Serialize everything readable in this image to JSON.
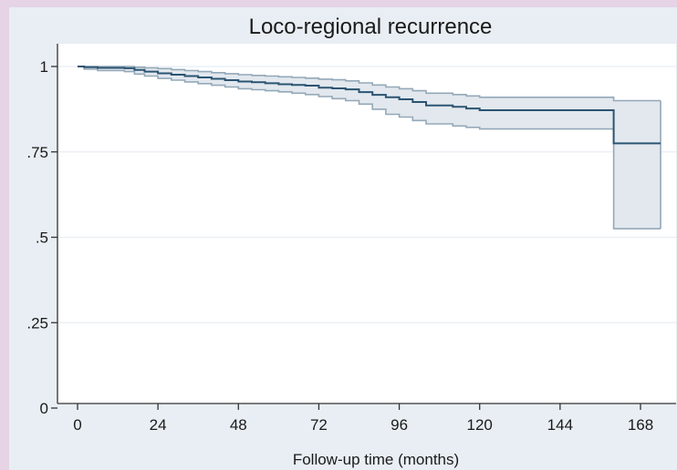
{
  "chart_data": {
    "type": "line",
    "title": "Loco-regional recurrence",
    "xlabel": "Follow-up time (months)",
    "ylabel": "",
    "xlim": [
      0,
      174
    ],
    "ylim": [
      0,
      1
    ],
    "x_ticks": [
      0,
      24,
      48,
      72,
      96,
      120,
      144,
      168
    ],
    "y_ticks": [
      0,
      0.25,
      0.5,
      0.75,
      1
    ],
    "y_tick_labels": [
      "0",
      ".25",
      ".5",
      ".75",
      "1"
    ],
    "grid": true,
    "legend": "none",
    "series": [
      {
        "style": "step",
        "x": [
          0,
          2,
          6,
          10,
          14,
          17,
          20,
          24,
          28,
          32,
          36,
          40,
          44,
          48,
          52,
          56,
          60,
          64,
          68,
          72,
          76,
          80,
          84,
          88,
          92,
          96,
          100,
          104,
          108,
          112,
          116,
          120,
          126,
          130,
          140,
          150,
          160,
          165,
          174
        ],
        "y": [
          1.0,
          0.998,
          0.996,
          0.996,
          0.995,
          0.99,
          0.985,
          0.98,
          0.976,
          0.972,
          0.968,
          0.964,
          0.96,
          0.956,
          0.954,
          0.951,
          0.948,
          0.946,
          0.944,
          0.938,
          0.936,
          0.933,
          0.925,
          0.917,
          0.91,
          0.904,
          0.896,
          0.886,
          0.886,
          0.882,
          0.877,
          0.872,
          0.872,
          0.872,
          0.872,
          0.872,
          0.775,
          0.775,
          0.775
        ],
        "lower": [
          1.0,
          0.992,
          0.988,
          0.988,
          0.985,
          0.978,
          0.972,
          0.965,
          0.96,
          0.955,
          0.95,
          0.945,
          0.94,
          0.935,
          0.932,
          0.929,
          0.926,
          0.922,
          0.918,
          0.912,
          0.906,
          0.9,
          0.89,
          0.875,
          0.86,
          0.852,
          0.842,
          0.832,
          0.832,
          0.826,
          0.822,
          0.817,
          0.817,
          0.817,
          0.817,
          0.817,
          0.525,
          0.525,
          0.525
        ],
        "upper": [
          1.0,
          1.0,
          1.0,
          1.0,
          1.0,
          0.998,
          0.996,
          0.994,
          0.991,
          0.988,
          0.985,
          0.982,
          0.979,
          0.976,
          0.974,
          0.972,
          0.97,
          0.968,
          0.966,
          0.963,
          0.961,
          0.958,
          0.952,
          0.946,
          0.94,
          0.935,
          0.929,
          0.922,
          0.922,
          0.918,
          0.914,
          0.91,
          0.91,
          0.91,
          0.91,
          0.91,
          0.9,
          0.9,
          0.9
        ]
      }
    ],
    "colors": {
      "line": "#2b5471",
      "band_fill": "#e2e8ee",
      "band_edge": "#94a8b8",
      "plot_bg": "#ffffff",
      "grid": "#e8eef3",
      "axis": "#333333"
    }
  }
}
